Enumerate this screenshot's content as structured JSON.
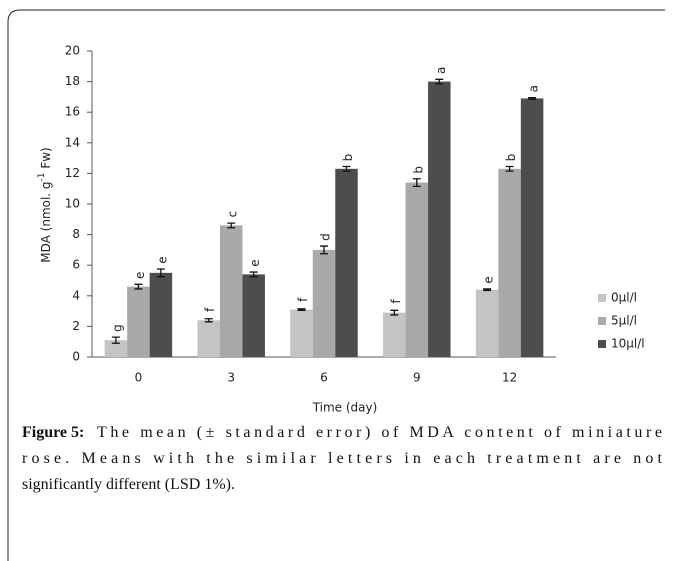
{
  "chart_data": {
    "type": "bar",
    "y_label": [
      "MDA (nmol. g",
      "-1",
      " Fw)"
    ],
    "x_label": "Time (day)",
    "categories": [
      "0",
      "3",
      "6",
      "9",
      "12"
    ],
    "series": [
      {
        "name": "0µl/l",
        "color": "#c4c4c4",
        "values": [
          1.1,
          2.4,
          3.1,
          2.9,
          4.4
        ],
        "errors": [
          0.2,
          0.1,
          0.05,
          0.15,
          0.05
        ],
        "letters": [
          "g",
          "f",
          "f",
          "f",
          "e"
        ]
      },
      {
        "name": "5µl/l",
        "color": "#a9a9a9",
        "values": [
          4.6,
          8.6,
          7.0,
          11.4,
          12.3
        ],
        "errors": [
          0.15,
          0.15,
          0.25,
          0.25,
          0.15
        ],
        "letters": [
          "e",
          "c",
          "d",
          "b",
          "b"
        ]
      },
      {
        "name": "10µl/l",
        "color": "#4d4d4d",
        "values": [
          5.5,
          5.4,
          12.3,
          18.0,
          16.9
        ],
        "errors": [
          0.25,
          0.15,
          0.15,
          0.15,
          0.05
        ],
        "letters": [
          "e",
          "e",
          "b",
          "a",
          "a"
        ]
      }
    ],
    "ylim": [
      0,
      20
    ],
    "yticks": [
      0,
      2,
      4,
      6,
      8,
      10,
      12,
      14,
      16,
      18,
      20
    ],
    "grid": false,
    "legend": "right"
  },
  "caption": {
    "label": "Figure 5:",
    "lines": [
      "The mean (± standard error) of MDA content of miniature",
      "rose. Means with the similar letters in each treatment are not",
      "significantly different (LSD 1%)."
    ]
  }
}
